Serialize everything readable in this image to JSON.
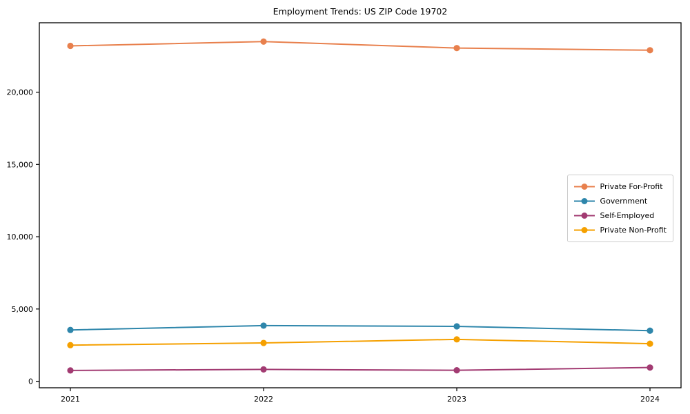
{
  "figure": {
    "background": "#ffffff",
    "axis_color": "#000000",
    "tick_label_color": "#000000",
    "legend_border_color": "#cccccc"
  },
  "chart_data": {
    "type": "line",
    "title": "Employment Trends: US ZIP Code 19702",
    "xlabel": "",
    "ylabel": "",
    "grid": false,
    "legend_position": "center right",
    "x": [
      "2021",
      "2022",
      "2023",
      "2024"
    ],
    "ylim": [
      -450,
      24800
    ],
    "yticks": [
      {
        "value": 0,
        "label": "0"
      },
      {
        "value": 5000,
        "label": "5,000"
      },
      {
        "value": 10000,
        "label": "10,000"
      },
      {
        "value": 15000,
        "label": "15,000"
      },
      {
        "value": 20000,
        "label": "20,000"
      }
    ],
    "series": [
      {
        "name": "Private For-Profit",
        "color": "#E8804D",
        "values": [
          23200,
          23500,
          23050,
          22900
        ]
      },
      {
        "name": "Government",
        "color": "#2E86AB",
        "values": [
          3550,
          3850,
          3800,
          3500
        ]
      },
      {
        "name": "Self-Employed",
        "color": "#A23B72",
        "values": [
          750,
          820,
          760,
          950
        ]
      },
      {
        "name": "Private Non-Profit",
        "color": "#F5A000",
        "values": [
          2500,
          2650,
          2900,
          2600
        ]
      }
    ]
  }
}
